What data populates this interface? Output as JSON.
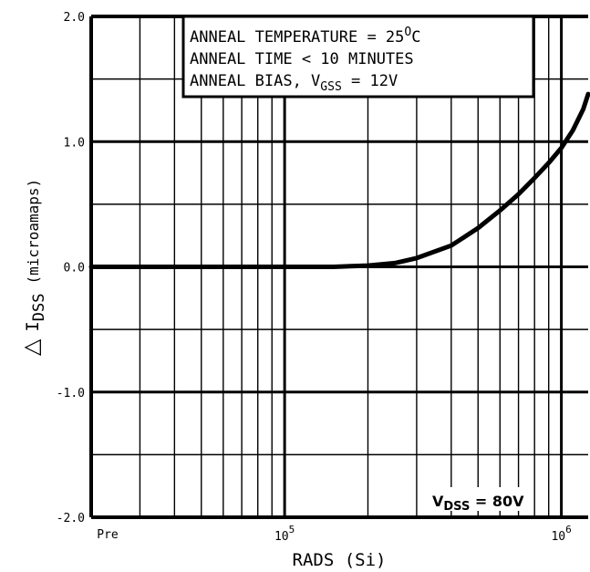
{
  "chart_data": {
    "type": "line",
    "xlabel": "RADS  (Si)",
    "ylabel_symbol": "△",
    "ylabel_main": "I",
    "ylabel_sub": "DSS",
    "ylabel_unit": "(microamaps)",
    "x_scale": "log",
    "xlim": [
      20000,
      1250000
    ],
    "ylim": [
      -2.0,
      2.0
    ],
    "grid": true,
    "x_tick_labels": [
      {
        "x": 20000,
        "label": "Pre"
      },
      {
        "x": 100000,
        "base": "10",
        "exp": "5"
      },
      {
        "x": 1000000,
        "base": "10",
        "exp": "6"
      }
    ],
    "y_ticks": [
      {
        "value": 2.0,
        "label": "2.0"
      },
      {
        "value": 1.0,
        "label": "1.0"
      },
      {
        "value": 0.0,
        "label": "0.0"
      },
      {
        "value": -1.0,
        "label": "-1.0"
      },
      {
        "value": -2.0,
        "label": "-2.0"
      }
    ],
    "annotation": {
      "line1": "ANNEAL TEMPERATURE = 25",
      "line1_sup": "O",
      "line1_end": "C",
      "line2": "ANNEAL TIME < 10 MINUTES",
      "line3": "ANNEAL BIAS, V",
      "line3_sub": "GSS",
      "line3_end": " = 12V"
    },
    "condition": {
      "prefix": "V",
      "sub": "DSS",
      "suffix": " = 80V"
    },
    "series": [
      {
        "x": [
          20000,
          50000,
          100000,
          150000,
          200000,
          250000,
          300000,
          400000,
          500000,
          600000,
          700000,
          800000,
          900000,
          1000000,
          1100000,
          1200000,
          1250000
        ],
        "y": [
          0.0,
          0.0,
          0.0,
          0.0,
          0.01,
          0.03,
          0.07,
          0.17,
          0.31,
          0.45,
          0.58,
          0.71,
          0.83,
          0.95,
          1.09,
          1.26,
          1.38
        ]
      }
    ]
  }
}
